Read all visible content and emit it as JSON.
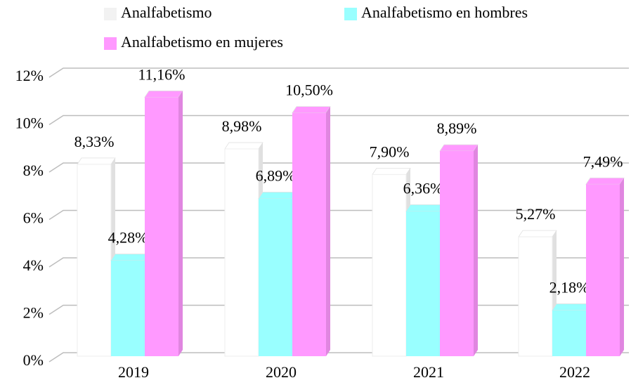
{
  "chart_data": {
    "type": "bar",
    "categories": [
      "2019",
      "2020",
      "2021",
      "2022"
    ],
    "series": [
      {
        "name": "Analfabetismo",
        "color": "#ffffff",
        "values": [
          8.33,
          8.98,
          7.9,
          5.27
        ],
        "value_labels": [
          "8,33%",
          "8,98%",
          "7,90%",
          "5,27%"
        ]
      },
      {
        "name": "Analfabetismo en hombres",
        "color": "#99ffff",
        "values": [
          4.28,
          6.89,
          6.36,
          2.18
        ],
        "value_labels": [
          "4,28%",
          "6,89%",
          "6,36%",
          "2,18%"
        ]
      },
      {
        "name": "Analfabetismo en mujeres",
        "color": "#ff99ff",
        "values": [
          11.16,
          10.5,
          8.89,
          7.49
        ],
        "value_labels": [
          "11,16%",
          "10,50%",
          "8,89%",
          "7,49%"
        ]
      }
    ],
    "ylim": [
      0,
      12
    ],
    "yticks": [
      {
        "value": 0,
        "label": "0%"
      },
      {
        "value": 2,
        "label": "2%"
      },
      {
        "value": 4,
        "label": "4%"
      },
      {
        "value": 6,
        "label": "6%"
      },
      {
        "value": 8,
        "label": "8%"
      },
      {
        "value": 10,
        "label": "10%"
      },
      {
        "value": 12,
        "label": "12%"
      }
    ],
    "grid": true
  }
}
